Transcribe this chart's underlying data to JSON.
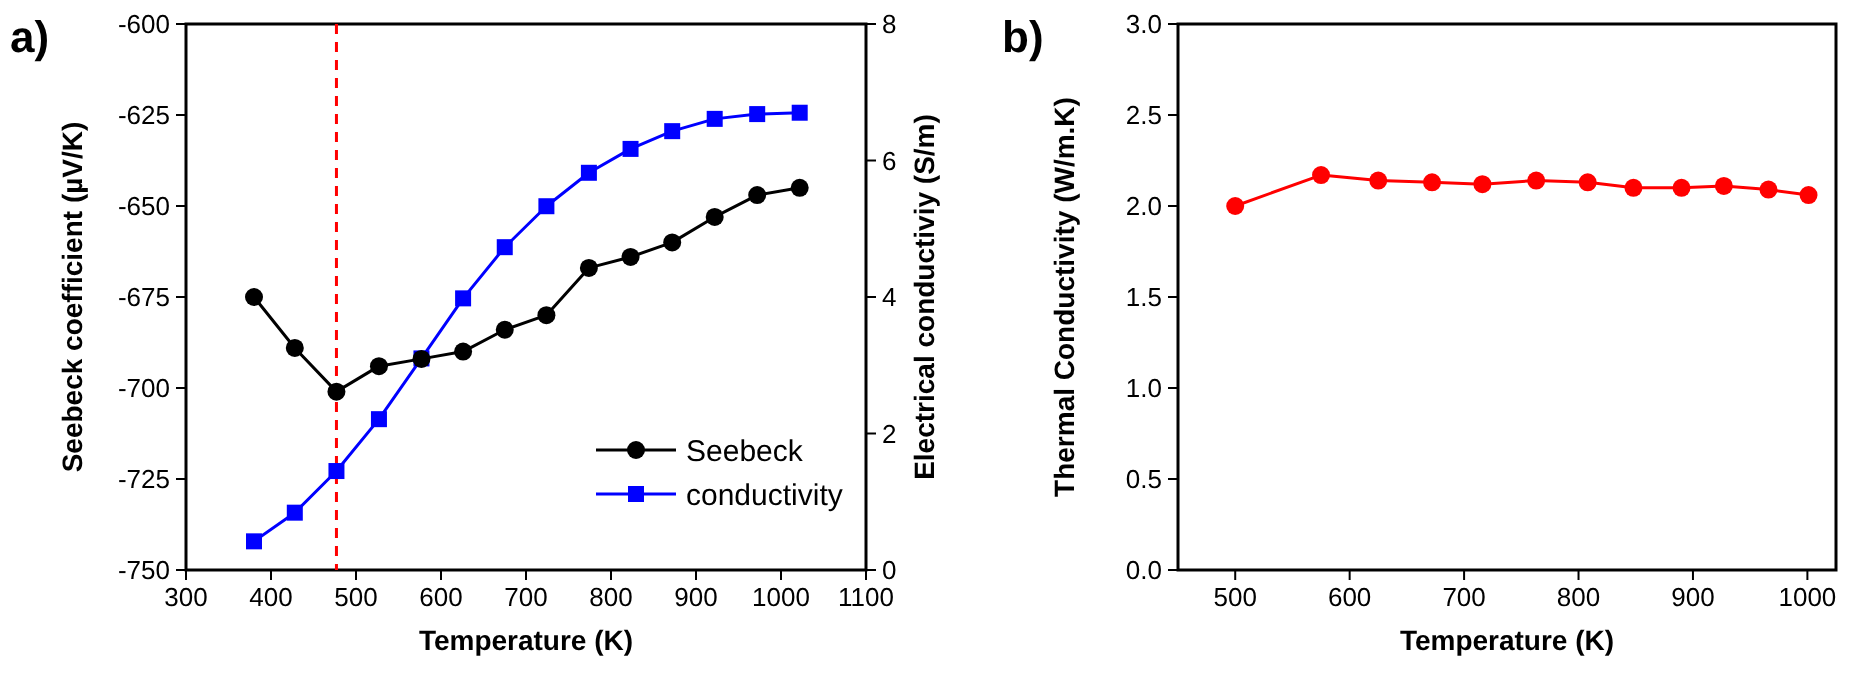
{
  "chart_data": [
    {
      "type": "line",
      "title": "a)",
      "xlabel": "Temperature (K)",
      "ylabel": "Seebeck coefficient (µV/K)",
      "y2label": "Electrical conductiviy (S/m)",
      "xlim": [
        300,
        1100
      ],
      "xticks": [
        300,
        400,
        500,
        600,
        700,
        800,
        900,
        1000,
        1100
      ],
      "ylim": [
        -750,
        -600
      ],
      "yticks": [
        -750,
        -725,
        -700,
        -675,
        -650,
        -625,
        -600
      ],
      "y2lim": [
        0,
        8
      ],
      "y2ticks": [
        0,
        2,
        4,
        6,
        8
      ],
      "legend": "bottom right",
      "grid": false,
      "ref_lines": [
        {
          "axis": "x",
          "value": 477,
          "color": "#ff0000",
          "line_style": "dashed"
        }
      ],
      "series": [
        {
          "name": "Seebeck",
          "color": "#000000",
          "marker": "circle",
          "x": [
            380,
            428,
            477,
            527,
            577,
            626,
            675,
            724,
            774,
            823,
            872,
            922,
            972,
            1022
          ],
          "values": [
            -675,
            -689,
            -701,
            -694,
            -692,
            -690,
            -684,
            -680,
            -667,
            -664,
            -660,
            -653,
            -647,
            -645
          ]
        },
        {
          "name": "conductivity",
          "color": "#0000ff",
          "marker": "square",
          "axis": "y2",
          "x": [
            380,
            428,
            477,
            527,
            577,
            626,
            675,
            724,
            774,
            823,
            872,
            922,
            972,
            1022
          ],
          "values": [
            0.42,
            0.84,
            1.45,
            2.21,
            3.1,
            3.98,
            4.73,
            5.33,
            5.82,
            6.17,
            6.43,
            6.61,
            6.68,
            6.7
          ]
        }
      ]
    },
    {
      "type": "line",
      "title": "b)",
      "xlabel": "Temperature (K)",
      "ylabel": "Thermal Conductivity (W/m.K)",
      "xlim": [
        450,
        1025
      ],
      "xticks": [
        500,
        600,
        700,
        800,
        900,
        1000
      ],
      "ylim": [
        0,
        3
      ],
      "yticks": [
        {
          "value": 0,
          "label": "0.0"
        },
        {
          "value": 0.5,
          "label": "0.5"
        },
        {
          "value": 1,
          "label": "1.0"
        },
        {
          "value": 1.5,
          "label": "1.5"
        },
        {
          "value": 2,
          "label": "2.0"
        },
        {
          "value": 2.5,
          "label": "2.5"
        },
        {
          "value": 3,
          "label": "3.0"
        }
      ],
      "grid": false,
      "series": [
        {
          "color": "#ff0000",
          "marker": "circle",
          "x": [
            500,
            575,
            625,
            672,
            716,
            763,
            808,
            848,
            890,
            927,
            966,
            1001
          ],
          "values": [
            2.0,
            2.17,
            2.14,
            2.13,
            2.12,
            2.14,
            2.13,
            2.1,
            2.1,
            2.11,
            2.09,
            2.06
          ]
        }
      ]
    }
  ]
}
